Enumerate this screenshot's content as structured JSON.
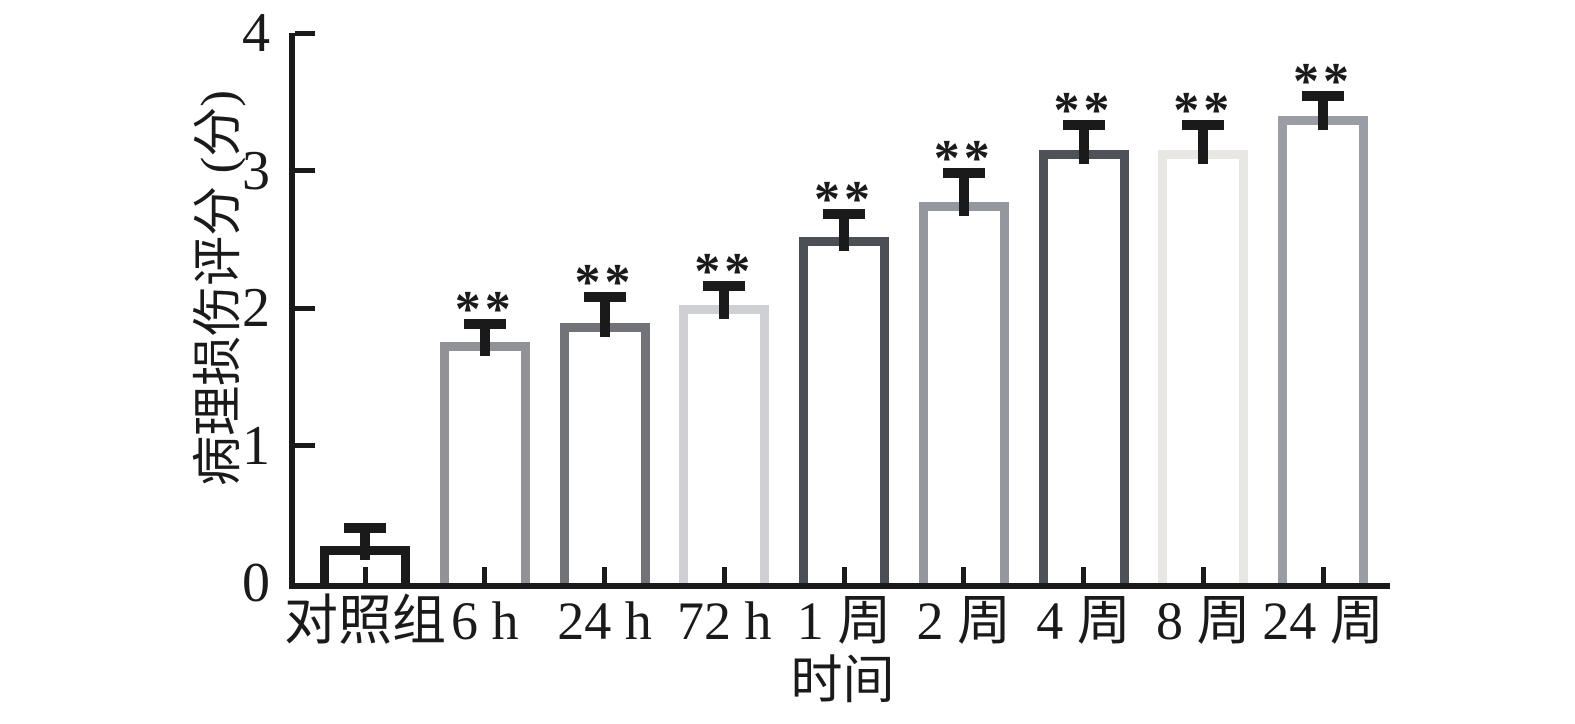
{
  "chart_data": {
    "type": "bar",
    "title": "",
    "xlabel": "时间",
    "ylabel": "病理损伤评分 (分)",
    "categories": [
      "对照组",
      "6 h",
      "24 h",
      "72 h",
      "1 周",
      "2 周",
      "4 周",
      "8 周",
      "24 周"
    ],
    "values": [
      0.27,
      1.75,
      1.89,
      2.02,
      2.52,
      2.77,
      3.15,
      3.15,
      3.4
    ],
    "errors": [
      0.17,
      0.17,
      0.23,
      0.18,
      0.2,
      0.25,
      0.22,
      0.22,
      0.18
    ],
    "significance": [
      "",
      "**",
      "**",
      "**",
      "**",
      "**",
      "**",
      "**",
      "**"
    ],
    "bar_fill": "#ffffff",
    "bar_edge_colors": [
      "#1a1a1a",
      "#909298",
      "#717379",
      "#cfd0d3",
      "#4c4f56",
      "#95979e",
      "#4e5157",
      "#e9e7e4",
      "#9a9da4"
    ],
    "error_bar_color": "#1a1a1a",
    "axis_color": "#1a1a1a",
    "yticks": [
      0,
      1,
      2,
      3,
      4
    ],
    "ylim": [
      0,
      4
    ],
    "grid": false,
    "legend": null
  }
}
